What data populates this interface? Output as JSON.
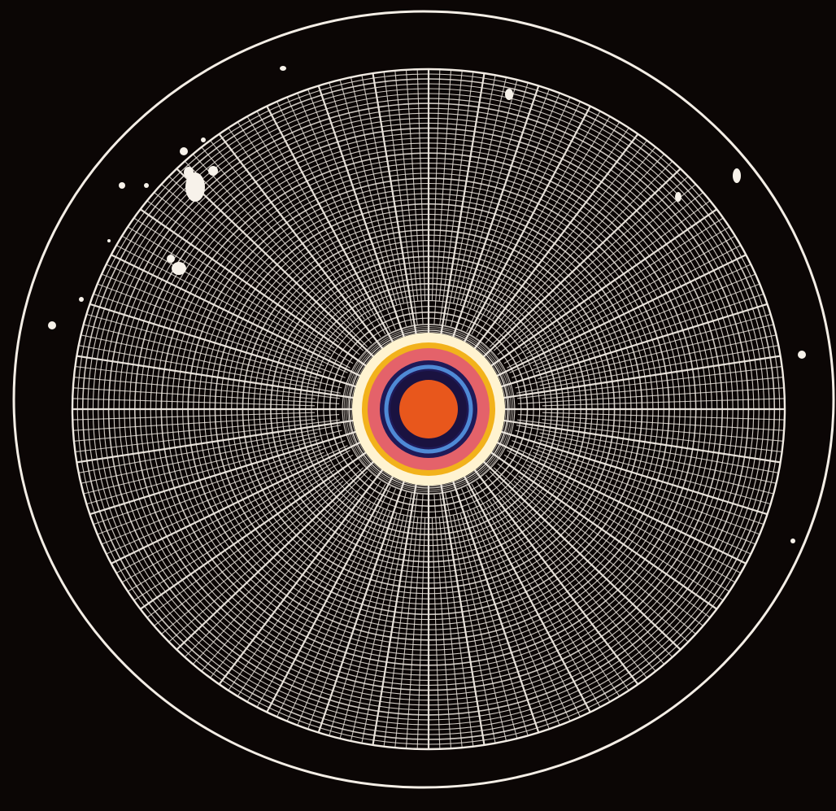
{
  "caption": "",
  "colors": {
    "background": "#0b0605",
    "grid_line": "#f1ebe3",
    "outer_ring": "#f4eee6",
    "halo": "#fff3d0",
    "ring_yellow": "#f2b21b",
    "ring_coral": "#e4626a",
    "ring_navy": "#1f1a58",
    "ring_blue": "#4f8ad6",
    "ring_dark": "#1a1240",
    "core_orange": "#e8571c",
    "speck": "#f7f2ea"
  },
  "pattern": {
    "radial_spokes": 200,
    "concentric_rings": 52,
    "spoke_break_rings": 10
  }
}
